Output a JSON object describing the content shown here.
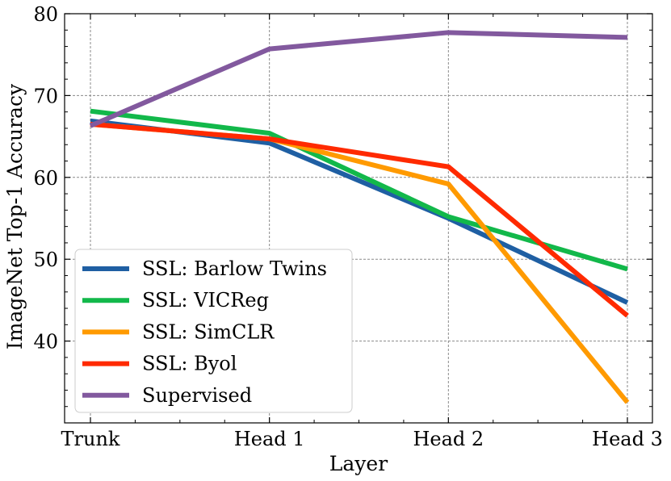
{
  "chart_data": {
    "type": "line",
    "title": "",
    "xlabel": "Layer",
    "ylabel": "ImageNet Top-1 Accuracy",
    "categories": [
      "Trunk",
      "Head 1",
      "Head 2",
      "Head 3"
    ],
    "ylim": [
      30,
      80
    ],
    "yticks": [
      40,
      50,
      60,
      70,
      80
    ],
    "grid": true,
    "legend_position": "lower-left",
    "series": [
      {
        "name": "SSL: Barlow Twins",
        "color": "#1f5fa3",
        "values": [
          66.9,
          64.2,
          55.0,
          44.7
        ]
      },
      {
        "name": "SSL: VICReg",
        "color": "#12b84a",
        "values": [
          68.1,
          65.4,
          55.2,
          48.8
        ]
      },
      {
        "name": "SSL: SimCLR",
        "color": "#ff9a00",
        "values": [
          66.5,
          64.7,
          59.2,
          32.5
        ]
      },
      {
        "name": "SSL: Byol",
        "color": "#ff2a00",
        "values": [
          66.5,
          64.7,
          61.3,
          43.1
        ]
      },
      {
        "name": "Supervised",
        "color": "#82599e",
        "values": [
          66.3,
          75.7,
          77.7,
          77.1
        ]
      }
    ]
  }
}
